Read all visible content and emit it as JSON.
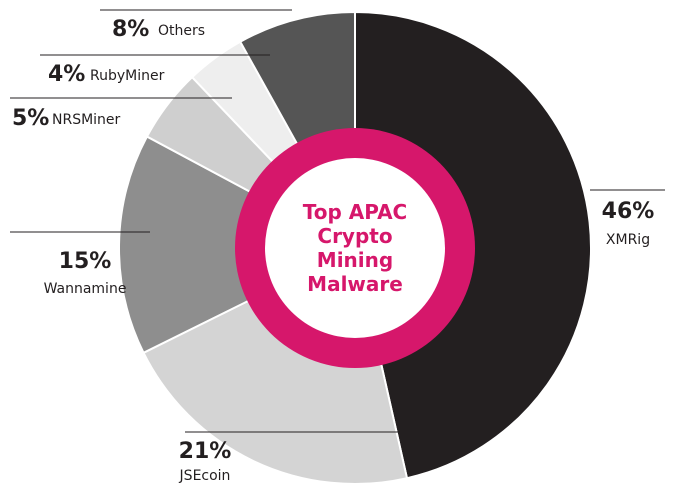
{
  "chart_data": {
    "type": "pie",
    "title": "Top APAC Crypto Mining Malware",
    "categories": [
      "XMRig",
      "JSEcoin",
      "Wannamine",
      "NRSMiner",
      "RubyMiner",
      "Others"
    ],
    "values": [
      46,
      21,
      15,
      5,
      4,
      8
    ],
    "value_labels": [
      "46%",
      "21%",
      "15%",
      "5%",
      "4%",
      "8%"
    ],
    "colors": [
      "#231f20",
      "#d4d4d4",
      "#8e8e8e",
      "#cfcfcf",
      "#eeeeee",
      "#555555"
    ],
    "center_color": "#d6176b"
  }
}
